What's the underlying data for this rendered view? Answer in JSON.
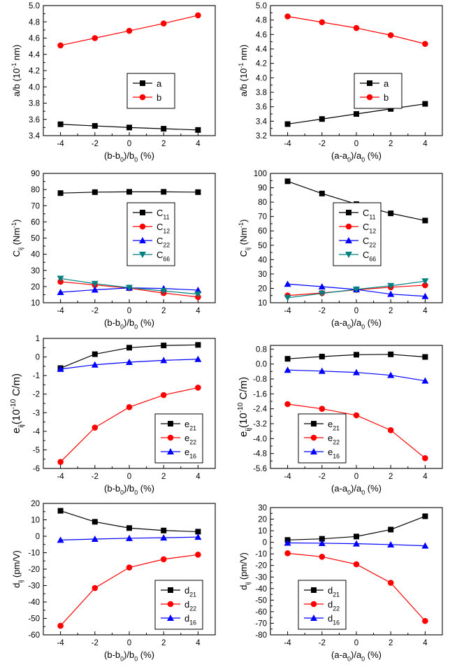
{
  "chart_data": [
    {
      "id": "p1",
      "type": "line",
      "x": [
        -4,
        -2,
        0,
        2,
        4
      ],
      "xticks": [
        -4,
        -2,
        0,
        2,
        4
      ],
      "xlim": [
        -5,
        5
      ],
      "ylim": [
        3.4,
        5.0
      ],
      "yticks": [
        3.4,
        3.6,
        3.8,
        4.0,
        4.2,
        4.4,
        4.6,
        4.8,
        5.0
      ],
      "ytick_labels": [
        "3.4",
        "3.6",
        "3.8",
        "4.0",
        "4.2",
        "4.4",
        "4.6",
        "4.8",
        "5.0"
      ],
      "xlabel": "(b-b0)/b0 (%)",
      "ylabel": "a/b (10^-1 nm)",
      "legend": "center",
      "series": [
        {
          "name": "a",
          "sub": "",
          "color": "#000000",
          "marker": "square",
          "values": [
            3.54,
            3.52,
            3.5,
            3.485,
            3.47
          ]
        },
        {
          "name": "b",
          "sub": "",
          "color": "#ff0000",
          "marker": "circle",
          "values": [
            4.51,
            4.6,
            4.69,
            4.78,
            4.88
          ]
        }
      ]
    },
    {
      "id": "p2",
      "type": "line",
      "x": [
        -4,
        -2,
        0,
        2,
        4
      ],
      "xticks": [
        -4,
        -2,
        0,
        2,
        4
      ],
      "xlim": [
        -5,
        5
      ],
      "ylim": [
        3.2,
        5.0
      ],
      "yticks": [
        3.2,
        3.4,
        3.6,
        3.8,
        4.0,
        4.2,
        4.4,
        4.6,
        4.8,
        5.0
      ],
      "ytick_labels": [
        "3.2",
        "3.4",
        "3.6",
        "3.8",
        "4.0",
        "4.2",
        "4.4",
        "4.6",
        "4.8",
        "5.0"
      ],
      "xlabel": "(a-a0)/a0 (%)",
      "ylabel": "a/b (10^-1 nm)",
      "legend": "center",
      "series": [
        {
          "name": "a",
          "sub": "",
          "color": "#000000",
          "marker": "square",
          "values": [
            3.36,
            3.43,
            3.5,
            3.57,
            3.64
          ]
        },
        {
          "name": "b",
          "sub": "",
          "color": "#ff0000",
          "marker": "circle",
          "values": [
            4.85,
            4.77,
            4.69,
            4.59,
            4.47
          ]
        }
      ]
    },
    {
      "id": "p3",
      "type": "line",
      "x": [
        -4,
        -2,
        0,
        2,
        4
      ],
      "xticks": [
        -4,
        -2,
        0,
        2,
        4
      ],
      "xlim": [
        -5,
        5
      ],
      "ylim": [
        10,
        90
      ],
      "yticks": [
        10,
        20,
        30,
        40,
        50,
        60,
        70,
        80,
        90
      ],
      "ytick_labels": [
        "10",
        "20",
        "30",
        "40",
        "50",
        "60",
        "70",
        "80",
        "90"
      ],
      "xlabel": "(b-b0)/b0 (%)",
      "ylabel": "Cij (Nm-1)",
      "legend": "center",
      "series": [
        {
          "name": "C",
          "sub": "11",
          "color": "#000000",
          "marker": "square",
          "values": [
            77.8,
            78.4,
            78.6,
            78.6,
            78.4
          ]
        },
        {
          "name": "C",
          "sub": "12",
          "color": "#ff0000",
          "marker": "circle",
          "values": [
            23.0,
            21.0,
            19.0,
            16.0,
            13.5
          ]
        },
        {
          "name": "C",
          "sub": "22",
          "color": "#0000ff",
          "marker": "triangle-up",
          "values": [
            16.5,
            18.0,
            19.2,
            18.8,
            17.8
          ]
        },
        {
          "name": "C",
          "sub": "66",
          "color": "#008080",
          "marker": "triangle-down",
          "values": [
            25.0,
            21.8,
            19.3,
            17.3,
            15.3
          ]
        }
      ]
    },
    {
      "id": "p4",
      "type": "line",
      "x": [
        -4,
        -2,
        0,
        2,
        4
      ],
      "xticks": [
        -4,
        -2,
        0,
        2,
        4
      ],
      "xlim": [
        -5,
        5
      ],
      "ylim": [
        10,
        100
      ],
      "yticks": [
        10,
        20,
        30,
        40,
        50,
        60,
        70,
        80,
        90,
        100
      ],
      "ytick_labels": [
        "10",
        "20",
        "30",
        "40",
        "50",
        "60",
        "70",
        "80",
        "90",
        "100"
      ],
      "xlabel": "(a-a0)/a0 (%)",
      "ylabel": "Cij (Nm-1)",
      "legend": "center",
      "series": [
        {
          "name": "C",
          "sub": "11",
          "color": "#000000",
          "marker": "square",
          "values": [
            94.5,
            86.0,
            78.6,
            72.2,
            67.2
          ]
        },
        {
          "name": "C",
          "sub": "12",
          "color": "#ff0000",
          "marker": "circle",
          "values": [
            15.0,
            16.8,
            19.0,
            20.8,
            22.2
          ]
        },
        {
          "name": "C",
          "sub": "22",
          "color": "#0000ff",
          "marker": "triangle-up",
          "values": [
            23.0,
            21.2,
            19.2,
            16.0,
            14.5
          ]
        },
        {
          "name": "C",
          "sub": "66",
          "color": "#008080",
          "marker": "triangle-down",
          "values": [
            13.5,
            16.5,
            19.3,
            21.8,
            25.0
          ]
        }
      ]
    },
    {
      "id": "p5",
      "type": "line",
      "x": [
        -4,
        -2,
        0,
        2,
        4
      ],
      "xticks": [
        -4,
        -2,
        0,
        2,
        4
      ],
      "xlim": [
        -5,
        5
      ],
      "ylim": [
        -6,
        1
      ],
      "yticks": [
        -6,
        -5,
        -4,
        -3,
        -2,
        -1,
        0,
        1
      ],
      "ytick_labels": [
        "-6",
        "-5",
        "-4",
        "-3",
        "-2",
        "-1",
        "0",
        "1"
      ],
      "xlabel": "(b-b0)/b0 (%)",
      "ylabel": "eij(10-10 C/m)",
      "legend": "lower-right",
      "series": [
        {
          "name": "e",
          "sub": "21",
          "color": "#000000",
          "marker": "square",
          "values": [
            -0.6,
            0.15,
            0.5,
            0.62,
            0.65
          ]
        },
        {
          "name": "e",
          "sub": "22",
          "color": "#ff0000",
          "marker": "circle",
          "values": [
            -5.65,
            -3.8,
            -2.7,
            -2.05,
            -1.65
          ]
        },
        {
          "name": "e",
          "sub": "16",
          "color": "#0000ff",
          "marker": "triangle-up",
          "values": [
            -0.65,
            -0.42,
            -0.28,
            -0.18,
            -0.12
          ]
        }
      ]
    },
    {
      "id": "p6",
      "type": "line",
      "x": [
        -4,
        -2,
        0,
        2,
        4
      ],
      "xticks": [
        -4,
        -2,
        0,
        2,
        4
      ],
      "xlim": [
        -5,
        5
      ],
      "ylim": [
        -5.6,
        1.0
      ],
      "yticks": [
        -5.6,
        -4.8,
        -4.0,
        -3.2,
        -2.4,
        -1.6,
        -0.8,
        0.0,
        0.8
      ],
      "ytick_labels": [
        "-5.6",
        "-4.8",
        "-4.0",
        "-3.2",
        "-2.4",
        "-1.6",
        "-0.8",
        "0.0",
        "0.8"
      ],
      "xlabel": "(a-a0)/a0 (%)",
      "ylabel": "eij(10-10 C/m)",
      "legend": "lower-left",
      "series": [
        {
          "name": "e",
          "sub": "21",
          "color": "#000000",
          "marker": "square",
          "values": [
            0.28,
            0.4,
            0.5,
            0.52,
            0.38
          ]
        },
        {
          "name": "e",
          "sub": "22",
          "color": "#ff0000",
          "marker": "circle",
          "values": [
            -2.15,
            -2.4,
            -2.75,
            -3.55,
            -5.05
          ]
        },
        {
          "name": "e",
          "sub": "16",
          "color": "#0000ff",
          "marker": "triangle-up",
          "values": [
            -0.32,
            -0.38,
            -0.45,
            -0.6,
            -0.9
          ]
        }
      ]
    },
    {
      "id": "p7",
      "type": "line",
      "x": [
        -4,
        -2,
        0,
        2,
        4
      ],
      "xticks": [
        -4,
        -2,
        0,
        2,
        4
      ],
      "xlim": [
        -5,
        5
      ],
      "ylim": [
        -60,
        20
      ],
      "yticks": [
        -60,
        -50,
        -40,
        -30,
        -20,
        -10,
        0,
        10,
        20
      ],
      "ytick_labels": [
        "-60",
        "-50",
        "-40",
        "-30",
        "-20",
        "-10",
        "0",
        "10",
        "20"
      ],
      "xlabel": "(b-b0)/b0 (%)",
      "ylabel": "dij (pm/V)",
      "legend": "lower-right",
      "series": [
        {
          "name": "d",
          "sub": "21",
          "color": "#000000",
          "marker": "square",
          "values": [
            15.5,
            8.8,
            5.0,
            3.5,
            2.8
          ]
        },
        {
          "name": "d",
          "sub": "22",
          "color": "#ff0000",
          "marker": "circle",
          "values": [
            -54.5,
            -31.5,
            -19.0,
            -14.0,
            -11.2
          ]
        },
        {
          "name": "d",
          "sub": "16",
          "color": "#0000ff",
          "marker": "triangle-up",
          "values": [
            -2.3,
            -1.7,
            -1.2,
            -0.9,
            -0.5
          ]
        }
      ]
    },
    {
      "id": "p8",
      "type": "line",
      "x": [
        -4,
        -2,
        0,
        2,
        4
      ],
      "xticks": [
        -4,
        -2,
        0,
        2,
        4
      ],
      "xlim": [
        -5,
        5
      ],
      "ylim": [
        -80,
        30
      ],
      "yticks": [
        -80,
        -70,
        -60,
        -50,
        -40,
        -30,
        -20,
        -10,
        0,
        10,
        20,
        30
      ],
      "ytick_labels": [
        "-80",
        "-70",
        "-60",
        "-50",
        "-40",
        "-30",
        "-20",
        "-10",
        "0",
        "10",
        "20",
        "30"
      ],
      "xlabel": "(a-a0)/a0 (%)",
      "ylabel": "dij (pm/V)",
      "legend": "lower-left",
      "series": [
        {
          "name": "d",
          "sub": "21",
          "color": "#000000",
          "marker": "square",
          "values": [
            2.0,
            3.0,
            5.0,
            11.0,
            22.5
          ]
        },
        {
          "name": "d",
          "sub": "22",
          "color": "#ff0000",
          "marker": "circle",
          "values": [
            -9.5,
            -12.5,
            -19.0,
            -35.0,
            -68.0
          ]
        },
        {
          "name": "d",
          "sub": "16",
          "color": "#0000ff",
          "marker": "triangle-up",
          "values": [
            -0.5,
            -0.8,
            -1.2,
            -2.0,
            -3.0
          ]
        }
      ]
    }
  ]
}
